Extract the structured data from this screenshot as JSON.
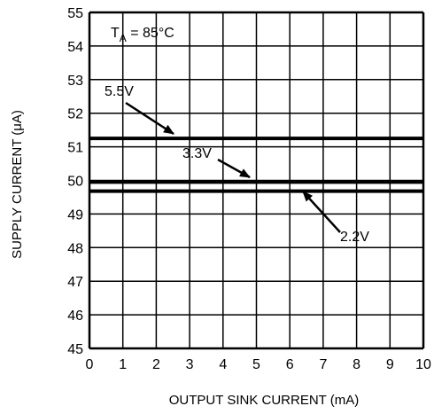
{
  "chart_data": {
    "type": "line",
    "xlabel": "OUTPUT SINK CURRENT (mA)",
    "ylabel": "SUPPLY CURRENT (μA)",
    "xlim": [
      0,
      10
    ],
    "ylim": [
      45,
      55
    ],
    "xticks": [
      "0",
      "1",
      "2",
      "3",
      "4",
      "5",
      "6",
      "7",
      "8",
      "9",
      "10"
    ],
    "yticks": [
      "45",
      "46",
      "47",
      "48",
      "49",
      "50",
      "51",
      "52",
      "53",
      "54",
      "55"
    ],
    "grid": true,
    "condition": {
      "base": "T",
      "sub": "A",
      "rest": " = 85°C"
    },
    "series": [
      {
        "name": "5.5V",
        "x": [
          0,
          10
        ],
        "y": [
          51.25,
          51.25
        ]
      },
      {
        "name": "3.3V",
        "x": [
          0,
          10
        ],
        "y": [
          49.95,
          49.95
        ]
      },
      {
        "name": "2.2V",
        "x": [
          0,
          10
        ],
        "y": [
          49.68,
          49.68
        ]
      }
    ],
    "colors": {
      "line": "#000000",
      "grid": "#000000",
      "background": "#ffffff"
    }
  }
}
